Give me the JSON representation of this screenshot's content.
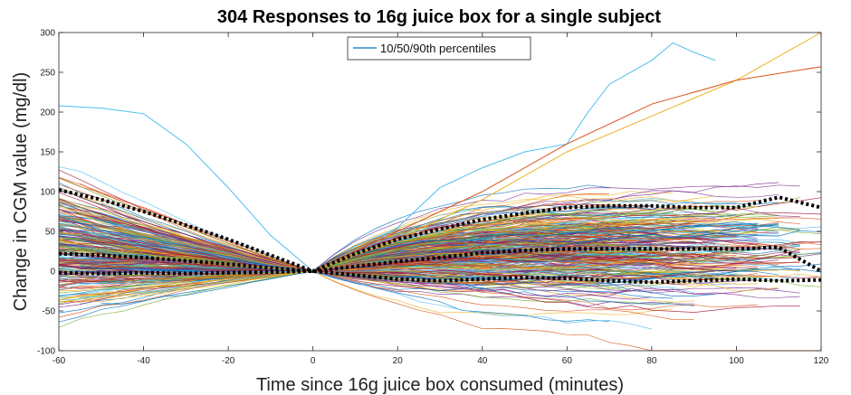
{
  "chart_data": {
    "type": "line",
    "title": "304 Responses to 16g juice box for a single subject",
    "xlabel": "Time since 16g juice box consumed (minutes)",
    "ylabel": "Change in CGM value (mg/dl)",
    "xlim": [
      -60,
      120
    ],
    "ylim": [
      -100,
      300
    ],
    "xticks": [
      -60,
      -40,
      -20,
      0,
      20,
      40,
      60,
      80,
      100,
      120
    ],
    "yticks": [
      -100,
      -50,
      0,
      50,
      100,
      150,
      200,
      250,
      300
    ],
    "x_tick_labels": [
      "-60",
      "-40",
      "-20",
      "0",
      "20",
      "40",
      "60",
      "80",
      "100",
      "120"
    ],
    "y_tick_labels": [
      "-100",
      "-50",
      "0",
      "50",
      "100",
      "150",
      "200",
      "250",
      "300"
    ],
    "grid": false,
    "legend": {
      "location": "top-center",
      "entries": [
        "10/50/90th percentiles"
      ]
    },
    "response_count": 304,
    "percentile_series": [
      {
        "name": "90th",
        "x": [
          -60,
          -50,
          -40,
          -30,
          -20,
          -10,
          0,
          10,
          20,
          30,
          40,
          50,
          60,
          70,
          80,
          90,
          100,
          110,
          120
        ],
        "values": [
          102,
          90,
          75,
          58,
          40,
          20,
          0,
          22,
          40,
          53,
          65,
          73,
          80,
          82,
          82,
          80,
          80,
          93,
          80
        ]
      },
      {
        "name": "50th",
        "x": [
          -60,
          -50,
          -40,
          -30,
          -20,
          -10,
          0,
          10,
          20,
          30,
          40,
          50,
          60,
          70,
          80,
          90,
          100,
          110,
          120
        ],
        "values": [
          22,
          20,
          17,
          13,
          9,
          4,
          0,
          6,
          12,
          17,
          23,
          26,
          28,
          28,
          28,
          28,
          28,
          30,
          0
        ]
      },
      {
        "name": "10th",
        "x": [
          -60,
          -50,
          -40,
          -30,
          -20,
          -10,
          0,
          10,
          20,
          30,
          40,
          50,
          60,
          70,
          80,
          90,
          100,
          110,
          120
        ],
        "values": [
          -2,
          -3,
          -2,
          -3,
          -2,
          -1,
          0,
          -5,
          -10,
          -12,
          -10,
          -8,
          -9,
          -12,
          -14,
          -12,
          -10,
          -12,
          -11
        ]
      }
    ],
    "highlighted_responses": [
      {
        "x": [
          0,
          10,
          20,
          30,
          40,
          50,
          60,
          65,
          70,
          80,
          85,
          90,
          95
        ],
        "values": [
          0,
          20,
          55,
          105,
          130,
          150,
          160,
          200,
          235,
          265,
          287,
          275,
          265
        ],
        "color": "#4dbeee"
      },
      {
        "x": [
          -60,
          -50,
          -40,
          -30,
          -20,
          -10,
          0
        ],
        "values": [
          208,
          205,
          198,
          160,
          105,
          45,
          0
        ],
        "color": "#4dbeee"
      },
      {
        "x": [
          0,
          20,
          40,
          60,
          80,
          100,
          120
        ],
        "values": [
          0,
          40,
          90,
          150,
          195,
          240,
          300
        ],
        "color": "#edb120"
      },
      {
        "x": [
          0,
          20,
          40,
          60,
          80,
          100,
          120
        ],
        "values": [
          0,
          50,
          100,
          160,
          210,
          240,
          257
        ],
        "color": "#d95319"
      }
    ],
    "series_colors": [
      "#0072bd",
      "#d95319",
      "#edb120",
      "#7e2f8e",
      "#77ac30",
      "#4dbeee",
      "#a2142f"
    ]
  }
}
